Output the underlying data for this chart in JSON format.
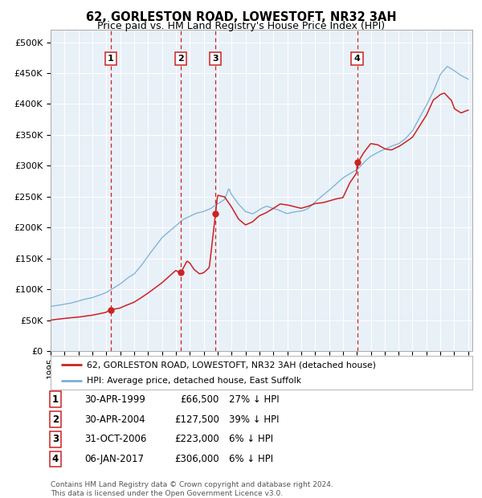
{
  "title": "62, GORLESTON ROAD, LOWESTOFT, NR32 3AH",
  "subtitle": "Price paid vs. HM Land Registry's House Price Index (HPI)",
  "xlim_start": 1995.0,
  "xlim_end": 2025.3,
  "ylim": [
    0,
    520000
  ],
  "yticks": [
    0,
    50000,
    100000,
    150000,
    200000,
    250000,
    300000,
    350000,
    400000,
    450000,
    500000
  ],
  "ytick_labels": [
    "£0",
    "£50K",
    "£100K",
    "£150K",
    "£200K",
    "£250K",
    "£300K",
    "£350K",
    "£400K",
    "£450K",
    "£500K"
  ],
  "transactions": [
    {
      "label": "1",
      "date_num": 1999.33,
      "price": 66500,
      "pct": "27% ↓ HPI",
      "date_str": "30-APR-1999"
    },
    {
      "label": "2",
      "date_num": 2004.33,
      "price": 127500,
      "pct": "39% ↓ HPI",
      "date_str": "30-APR-2004"
    },
    {
      "label": "3",
      "date_num": 2006.83,
      "price": 223000,
      "pct": "6% ↓ HPI",
      "date_str": "31-OCT-2006"
    },
    {
      "label": "4",
      "date_num": 2017.02,
      "price": 306000,
      "pct": "6% ↓ HPI",
      "date_str": "06-JAN-2017"
    }
  ],
  "red_line_color": "#cc2222",
  "blue_line_color": "#7ab0d4",
  "plot_bg_color": "#e8f0f8",
  "grid_color": "#ffffff",
  "vline_color": "#cc2222",
  "marker_color": "#cc2222",
  "legend_label_red": "62, GORLESTON ROAD, LOWESTOFT, NR32 3AH (detached house)",
  "legend_label_blue": "HPI: Average price, detached house, East Suffolk",
  "footnote": "Contains HM Land Registry data © Crown copyright and database right 2024.\nThis data is licensed under the Open Government Licence v3.0.",
  "xtick_years": [
    1995,
    1996,
    1997,
    1998,
    1999,
    2000,
    2001,
    2002,
    2003,
    2004,
    2005,
    2006,
    2007,
    2008,
    2009,
    2010,
    2011,
    2012,
    2013,
    2014,
    2015,
    2016,
    2017,
    2018,
    2019,
    2020,
    2021,
    2022,
    2023,
    2024,
    2025
  ],
  "hpi_anchors": [
    [
      1995.0,
      72000
    ],
    [
      1996.0,
      76000
    ],
    [
      1997.0,
      82000
    ],
    [
      1998.0,
      88000
    ],
    [
      1999.0,
      95000
    ],
    [
      2000.0,
      108000
    ],
    [
      2001.0,
      125000
    ],
    [
      2002.0,
      155000
    ],
    [
      2003.0,
      185000
    ],
    [
      2004.0,
      205000
    ],
    [
      2004.5,
      215000
    ],
    [
      2005.0,
      220000
    ],
    [
      2005.5,
      225000
    ],
    [
      2006.0,
      228000
    ],
    [
      2006.5,
      232000
    ],
    [
      2007.0,
      240000
    ],
    [
      2007.5,
      248000
    ],
    [
      2007.8,
      265000
    ],
    [
      2008.0,
      255000
    ],
    [
      2008.5,
      240000
    ],
    [
      2009.0,
      228000
    ],
    [
      2009.5,
      225000
    ],
    [
      2010.0,
      232000
    ],
    [
      2010.5,
      238000
    ],
    [
      2011.0,
      235000
    ],
    [
      2011.5,
      232000
    ],
    [
      2012.0,
      228000
    ],
    [
      2012.5,
      230000
    ],
    [
      2013.0,
      232000
    ],
    [
      2013.5,
      238000
    ],
    [
      2014.0,
      248000
    ],
    [
      2014.5,
      258000
    ],
    [
      2015.0,
      268000
    ],
    [
      2015.5,
      278000
    ],
    [
      2016.0,
      288000
    ],
    [
      2016.5,
      295000
    ],
    [
      2017.0,
      302000
    ],
    [
      2017.5,
      315000
    ],
    [
      2018.0,
      325000
    ],
    [
      2018.5,
      332000
    ],
    [
      2019.0,
      338000
    ],
    [
      2019.5,
      342000
    ],
    [
      2020.0,
      345000
    ],
    [
      2020.5,
      352000
    ],
    [
      2021.0,
      365000
    ],
    [
      2021.5,
      385000
    ],
    [
      2022.0,
      405000
    ],
    [
      2022.5,
      428000
    ],
    [
      2023.0,
      455000
    ],
    [
      2023.5,
      468000
    ],
    [
      2024.0,
      462000
    ],
    [
      2024.5,
      455000
    ],
    [
      2025.0,
      450000
    ]
  ],
  "prop_anchors": [
    [
      1995.0,
      50000
    ],
    [
      1996.0,
      52000
    ],
    [
      1997.0,
      54000
    ],
    [
      1998.0,
      57000
    ],
    [
      1999.0,
      62000
    ],
    [
      1999.33,
      66500
    ],
    [
      2000.0,
      70000
    ],
    [
      2001.0,
      80000
    ],
    [
      2002.0,
      95000
    ],
    [
      2003.0,
      112000
    ],
    [
      2004.0,
      132000
    ],
    [
      2004.33,
      127500
    ],
    [
      2004.8,
      148000
    ],
    [
      2005.0,
      145000
    ],
    [
      2005.3,
      135000
    ],
    [
      2005.7,
      128000
    ],
    [
      2006.0,
      130000
    ],
    [
      2006.4,
      138000
    ],
    [
      2006.83,
      223000
    ],
    [
      2007.0,
      255000
    ],
    [
      2007.5,
      252000
    ],
    [
      2008.0,
      235000
    ],
    [
      2008.5,
      215000
    ],
    [
      2009.0,
      205000
    ],
    [
      2009.5,
      210000
    ],
    [
      2010.0,
      220000
    ],
    [
      2010.5,
      225000
    ],
    [
      2011.0,
      232000
    ],
    [
      2011.5,
      240000
    ],
    [
      2012.0,
      238000
    ],
    [
      2012.5,
      235000
    ],
    [
      2013.0,
      232000
    ],
    [
      2013.5,
      235000
    ],
    [
      2014.0,
      240000
    ],
    [
      2014.5,
      242000
    ],
    [
      2015.0,
      245000
    ],
    [
      2015.5,
      248000
    ],
    [
      2016.0,
      250000
    ],
    [
      2016.5,
      275000
    ],
    [
      2017.0,
      292000
    ],
    [
      2017.02,
      306000
    ],
    [
      2017.5,
      325000
    ],
    [
      2018.0,
      340000
    ],
    [
      2018.5,
      338000
    ],
    [
      2019.0,
      332000
    ],
    [
      2019.5,
      330000
    ],
    [
      2020.0,
      335000
    ],
    [
      2020.5,
      342000
    ],
    [
      2021.0,
      350000
    ],
    [
      2021.5,
      368000
    ],
    [
      2022.0,
      385000
    ],
    [
      2022.5,
      410000
    ],
    [
      2023.0,
      418000
    ],
    [
      2023.3,
      420000
    ],
    [
      2023.8,
      408000
    ],
    [
      2024.0,
      395000
    ],
    [
      2024.5,
      388000
    ],
    [
      2025.0,
      392000
    ]
  ]
}
